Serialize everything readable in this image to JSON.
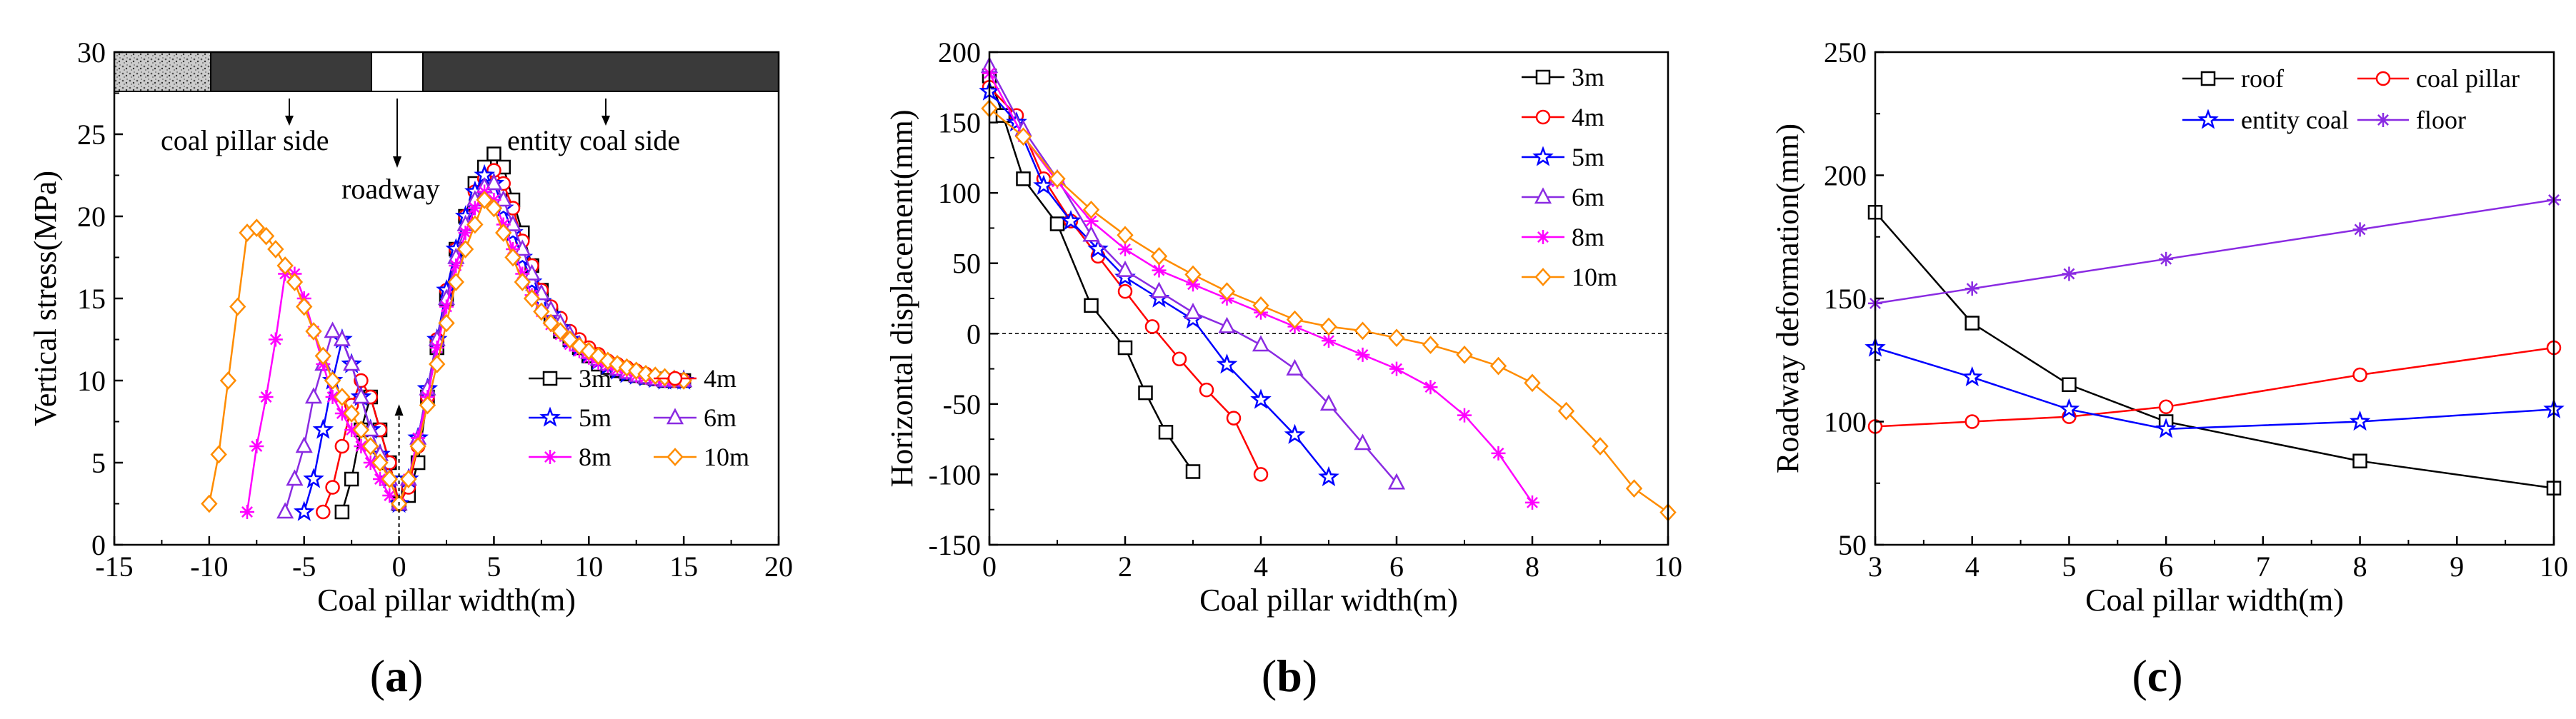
{
  "chart_data": [
    {
      "type": "line",
      "panel": "a",
      "panel_label": "(a)",
      "xlabel": "Coal pillar width(m)",
      "ylabel": "Vertical stress(MPa)",
      "xlim": [
        -15,
        20
      ],
      "ylim": [
        0,
        30
      ],
      "xticks": [
        -15,
        -10,
        -5,
        0,
        5,
        10,
        15,
        20
      ],
      "yticks": [
        0,
        5,
        10,
        15,
        20,
        25,
        30
      ],
      "legend_position": "lower-right",
      "annotations": {
        "coal_pillar_side": "coal pillar side",
        "entity_coal_side": "entity coal side",
        "roadway": "roadway"
      },
      "series": [
        {
          "name": "3m",
          "color": "#000000",
          "marker": "square",
          "x": [
            -3,
            -2.5,
            -2,
            -1.5,
            -1,
            -0.5,
            0,
            0.5,
            1,
            1.5,
            2,
            2.5,
            3,
            3.5,
            4,
            4.5,
            5,
            5.5,
            6,
            6.5,
            7,
            7.5,
            8,
            8.5,
            9,
            9.5,
            10,
            10.5,
            11,
            11.5,
            12,
            12.5,
            13,
            13.5,
            14,
            14.5,
            15
          ],
          "y": [
            2,
            4,
            7,
            9,
            7,
            5,
            2.5,
            3,
            5,
            9,
            12,
            15,
            18,
            20,
            22,
            23,
            23.8,
            23,
            21,
            19,
            17,
            15.5,
            14,
            13,
            12.5,
            12,
            11.5,
            11,
            10.8,
            10.6,
            10.4,
            10.3,
            10.2,
            10.1,
            10,
            10,
            10
          ]
        },
        {
          "name": "4m",
          "color": "#ff0000",
          "marker": "circle",
          "x": [
            -4,
            -3.5,
            -3,
            -2.5,
            -2,
            -1.5,
            -1,
            -0.5,
            0,
            0.5,
            1,
            1.5,
            2,
            2.5,
            3,
            3.5,
            4,
            4.5,
            5,
            5.5,
            6,
            6.5,
            7,
            7.5,
            8,
            8.5,
            9,
            9.5,
            10,
            10.5,
            11,
            11.5,
            12,
            12.5,
            13,
            13.5,
            14,
            14.5,
            15
          ],
          "y": [
            2,
            3.5,
            6,
            8.5,
            10,
            9,
            7,
            5,
            2.5,
            3.5,
            6,
            9,
            12.5,
            15.5,
            18,
            20,
            21.5,
            22.3,
            22.8,
            22,
            20.5,
            18.5,
            17,
            15.5,
            14.5,
            13.8,
            13,
            12.5,
            12,
            11.6,
            11.2,
            11,
            10.8,
            10.6,
            10.4,
            10.2,
            10.1,
            10,
            10
          ]
        },
        {
          "name": "5m",
          "color": "#0000ff",
          "marker": "star",
          "x": [
            -5,
            -4.5,
            -4,
            -3.5,
            -3,
            -2.5,
            -2,
            -1.5,
            -1,
            -0.5,
            0,
            0.5,
            1,
            1.5,
            2,
            2.5,
            3,
            3.5,
            4,
            4.5,
            5,
            5.5,
            6,
            6.5,
            7,
            7.5,
            8,
            8.5,
            9,
            9.5,
            10,
            10.5,
            11,
            11.5,
            12,
            12.5,
            13,
            13.5,
            14,
            14.5,
            15
          ],
          "y": [
            2,
            4,
            7,
            10,
            12.5,
            11,
            9,
            7,
            5.5,
            4,
            2.5,
            4,
            6.5,
            9.5,
            12.5,
            15.5,
            18,
            20,
            21.5,
            22.5,
            22,
            20.5,
            19,
            17.5,
            16,
            14.8,
            14,
            13.2,
            12.5,
            12,
            11.6,
            11.2,
            10.9,
            10.6,
            10.4,
            10.3,
            10.2,
            10.1,
            10,
            10,
            10
          ]
        },
        {
          "name": "6m",
          "color": "#8a2be2",
          "marker": "triangle",
          "x": [
            -6,
            -5.5,
            -5,
            -4.5,
            -4,
            -3.5,
            -3,
            -2.5,
            -2,
            -1.5,
            -1,
            -0.5,
            0,
            0.5,
            1,
            1.5,
            2,
            2.5,
            3,
            3.5,
            4,
            4.5,
            5,
            5.5,
            6,
            6.5,
            7,
            7.5,
            8,
            8.5,
            9,
            9.5,
            10,
            10.5,
            11,
            11.5,
            12,
            12.5,
            13,
            13.5,
            14,
            14.5,
            15
          ],
          "y": [
            2,
            4,
            6,
            9,
            11,
            13,
            12.5,
            11,
            9,
            7,
            5.5,
            4,
            2.5,
            4,
            6.5,
            9.5,
            12.5,
            15,
            17.5,
            19.5,
            21,
            21.8,
            22,
            21,
            19.5,
            18,
            16.5,
            15.3,
            14.3,
            13.5,
            12.8,
            12.2,
            11.7,
            11.3,
            11,
            10.7,
            10.5,
            10.3,
            10.2,
            10.1,
            10,
            10,
            10
          ]
        },
        {
          "name": "8m",
          "color": "#ff00ff",
          "marker": "asterisk",
          "x": [
            -8,
            -7.5,
            -7,
            -6.5,
            -6,
            -5.5,
            -5,
            -4.5,
            -4,
            -3.5,
            -3,
            -2.5,
            -2,
            -1.5,
            -1,
            -0.5,
            0,
            0.5,
            1,
            1.5,
            2,
            2.5,
            3,
            3.5,
            4,
            4.5,
            5,
            5.5,
            6,
            6.5,
            7,
            7.5,
            8,
            8.5,
            9,
            9.5,
            10,
            10.5,
            11,
            11.5,
            12,
            12.5,
            13,
            13.5,
            14,
            14.5,
            15
          ],
          "y": [
            2,
            6,
            9,
            12.5,
            16.5,
            16.5,
            15,
            13,
            11,
            9,
            8,
            7,
            6,
            5,
            4,
            3,
            2.5,
            4,
            6.5,
            9,
            12,
            14.5,
            17,
            19,
            20.5,
            21.5,
            21,
            19.5,
            18,
            16.5,
            15.2,
            14.2,
            13.4,
            12.8,
            12.2,
            11.8,
            11.4,
            11.1,
            10.9,
            10.7,
            10.5,
            10.3,
            10.2,
            10.1,
            10,
            10,
            10
          ]
        },
        {
          "name": "10m",
          "color": "#ff8c00",
          "marker": "diamond",
          "x": [
            -10,
            -9.5,
            -9,
            -8.5,
            -8,
            -7.5,
            -7,
            -6.5,
            -6,
            -5.5,
            -5,
            -4.5,
            -4,
            -3.5,
            -3,
            -2.5,
            -2,
            -1.5,
            -1,
            -0.5,
            0,
            0.5,
            1,
            1.5,
            2,
            2.5,
            3,
            3.5,
            4,
            4.5,
            5,
            5.5,
            6,
            6.5,
            7,
            7.5,
            8,
            8.5,
            9,
            9.5,
            10,
            10.5,
            11,
            11.5,
            12,
            12.5,
            13,
            13.5,
            14,
            14.5,
            15
          ],
          "y": [
            2.5,
            5.5,
            10,
            14.5,
            19,
            19.3,
            18.8,
            18,
            17,
            16,
            14.5,
            13,
            11.5,
            10,
            9,
            8,
            7,
            6,
            5,
            4,
            2.5,
            4,
            6,
            8.5,
            11,
            13.5,
            16,
            18,
            19.5,
            21,
            20.5,
            19,
            17.5,
            16,
            15,
            14.2,
            13.5,
            13,
            12.5,
            12.1,
            11.8,
            11.5,
            11.2,
            11,
            10.8,
            10.6,
            10.4,
            10.3,
            10.2,
            10.1,
            10
          ]
        }
      ]
    },
    {
      "type": "line",
      "panel": "b",
      "panel_label": "(b)",
      "xlabel": "Coal pillar width(m)",
      "ylabel": "Horizontal displacement(mm)",
      "xlim": [
        0,
        10
      ],
      "ylim": [
        -150,
        200
      ],
      "xticks": [
        0,
        2,
        4,
        6,
        8,
        10
      ],
      "yticks": [
        -150,
        -100,
        -50,
        0,
        50,
        100,
        150,
        200
      ],
      "legend_position": "top-right",
      "series": [
        {
          "name": "3m",
          "color": "#000000",
          "marker": "square",
          "x": [
            0,
            0.2,
            0.5,
            1,
            1.5,
            2,
            2.3,
            2.6,
            3
          ],
          "y": [
            183,
            155,
            110,
            78,
            20,
            -10,
            -42,
            -70,
            -98
          ]
        },
        {
          "name": "4m",
          "color": "#ff0000",
          "marker": "circle",
          "x": [
            0,
            0.4,
            0.8,
            1.2,
            1.6,
            2,
            2.4,
            2.8,
            3.2,
            3.6,
            4
          ],
          "y": [
            175,
            155,
            110,
            80,
            55,
            30,
            5,
            -18,
            -40,
            -60,
            -100
          ]
        },
        {
          "name": "5m",
          "color": "#0000ff",
          "marker": "star",
          "x": [
            0,
            0.4,
            0.8,
            1.2,
            1.6,
            2,
            2.5,
            3,
            3.5,
            4,
            4.5,
            5
          ],
          "y": [
            172,
            150,
            105,
            80,
            60,
            40,
            25,
            10,
            -22,
            -47,
            -72,
            -102
          ]
        },
        {
          "name": "6m",
          "color": "#8a2be2",
          "marker": "triangle",
          "x": [
            0,
            0.5,
            1,
            1.5,
            2,
            2.5,
            3,
            3.5,
            4,
            4.5,
            5,
            5.5,
            6
          ],
          "y": [
            190,
            145,
            110,
            70,
            45,
            30,
            15,
            5,
            -8,
            -25,
            -50,
            -78,
            -106
          ]
        },
        {
          "name": "8m",
          "color": "#ff00ff",
          "marker": "asterisk",
          "x": [
            0,
            0.5,
            1,
            1.5,
            2,
            2.5,
            3,
            3.5,
            4,
            4.5,
            5,
            5.5,
            6,
            6.5,
            7,
            7.5,
            8
          ],
          "y": [
            185,
            140,
            108,
            80,
            60,
            45,
            35,
            25,
            15,
            5,
            -5,
            -15,
            -25,
            -38,
            -58,
            -85,
            -120
          ]
        },
        {
          "name": "10m",
          "color": "#ff8c00",
          "marker": "diamond",
          "x": [
            0,
            0.5,
            1,
            1.5,
            2,
            2.5,
            3,
            3.5,
            4,
            4.5,
            5,
            5.5,
            6,
            6.5,
            7,
            7.5,
            8,
            8.5,
            9,
            9.5,
            10
          ],
          "y": [
            160,
            140,
            110,
            88,
            70,
            55,
            42,
            30,
            20,
            10,
            5,
            2,
            -3,
            -8,
            -15,
            -23,
            -35,
            -55,
            -80,
            -110,
            -127
          ]
        }
      ]
    },
    {
      "type": "line",
      "panel": "c",
      "panel_label": "(c)",
      "xlabel": "Coal pillar width(m)",
      "ylabel": "Roadway deformation(mm)",
      "xlim": [
        3,
        10
      ],
      "ylim": [
        50,
        250
      ],
      "xticks": [
        3,
        4,
        5,
        6,
        7,
        8,
        9,
        10
      ],
      "yticks": [
        50,
        100,
        150,
        200,
        250
      ],
      "legend_position": "top",
      "series": [
        {
          "name": "roof",
          "color": "#000000",
          "marker": "square",
          "x": [
            3,
            4,
            5,
            6,
            8,
            10
          ],
          "y": [
            185,
            140,
            115,
            100,
            84,
            73
          ]
        },
        {
          "name": "coal pillar",
          "color": "#ff0000",
          "marker": "circle",
          "x": [
            3,
            4,
            5,
            6,
            8,
            10
          ],
          "y": [
            98,
            100,
            102,
            106,
            119,
            130
          ]
        },
        {
          "name": "entity coal",
          "color": "#0000ff",
          "marker": "star",
          "x": [
            3,
            4,
            5,
            6,
            8,
            10
          ],
          "y": [
            130,
            118,
            105,
            97,
            100,
            105
          ]
        },
        {
          "name": "floor",
          "color": "#8a2be2",
          "marker": "asterisk",
          "x": [
            3,
            4,
            5,
            6,
            8,
            10
          ],
          "y": [
            148,
            154,
            160,
            166,
            178,
            190
          ]
        }
      ]
    }
  ]
}
